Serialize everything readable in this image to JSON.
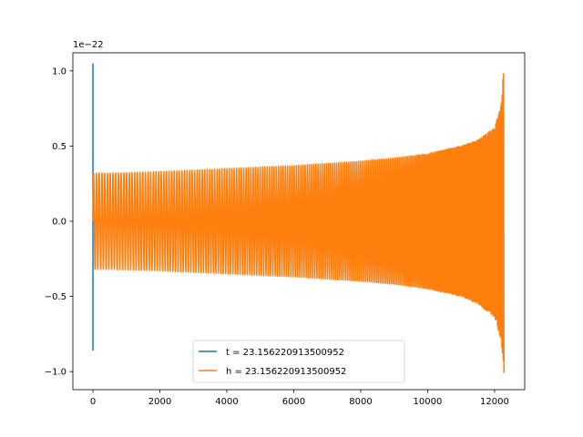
{
  "chart_data": {
    "type": "line",
    "title": "",
    "xlabel": "",
    "ylabel": "",
    "offset_text": "1e−22",
    "xlim": [
      -600,
      12900
    ],
    "ylim": [
      -1.12,
      1.12
    ],
    "x_ticks": [
      0,
      2000,
      4000,
      6000,
      8000,
      10000,
      12000
    ],
    "x_tick_labels": [
      "0",
      "2000",
      "4000",
      "6000",
      "8000",
      "10000",
      "12000"
    ],
    "y_ticks": [
      -1.0,
      -0.5,
      0.0,
      0.5,
      1.0
    ],
    "y_tick_labels": [
      "−1.0",
      "−0.5",
      "0.0",
      "0.5",
      "1.0"
    ],
    "grid": false,
    "legend_position": "lower-center",
    "series": [
      {
        "name": "t = 23.156220913500952",
        "color": "#1f77b4",
        "description_points": {
          "x": [
            0,
            0,
            0
          ],
          "y": [
            1.05,
            -0.86,
            0.0
          ]
        }
      },
      {
        "name": "h = 23.156220913500952",
        "color": "#ff7f0e",
        "envelope": {
          "x": [
            0,
            500,
            2000,
            4000,
            6000,
            8000,
            9000,
            10000,
            11000,
            11500,
            12000,
            12200,
            12280
          ],
          "upper": [
            0.32,
            0.32,
            0.33,
            0.35,
            0.37,
            0.4,
            0.42,
            0.45,
            0.5,
            0.54,
            0.62,
            0.78,
            1.05
          ],
          "lower": [
            -0.32,
            -0.32,
            -0.33,
            -0.35,
            -0.37,
            -0.4,
            -0.42,
            -0.45,
            -0.5,
            -0.55,
            -0.64,
            -0.8,
            -1.01
          ]
        },
        "x_end": 12280
      }
    ]
  }
}
